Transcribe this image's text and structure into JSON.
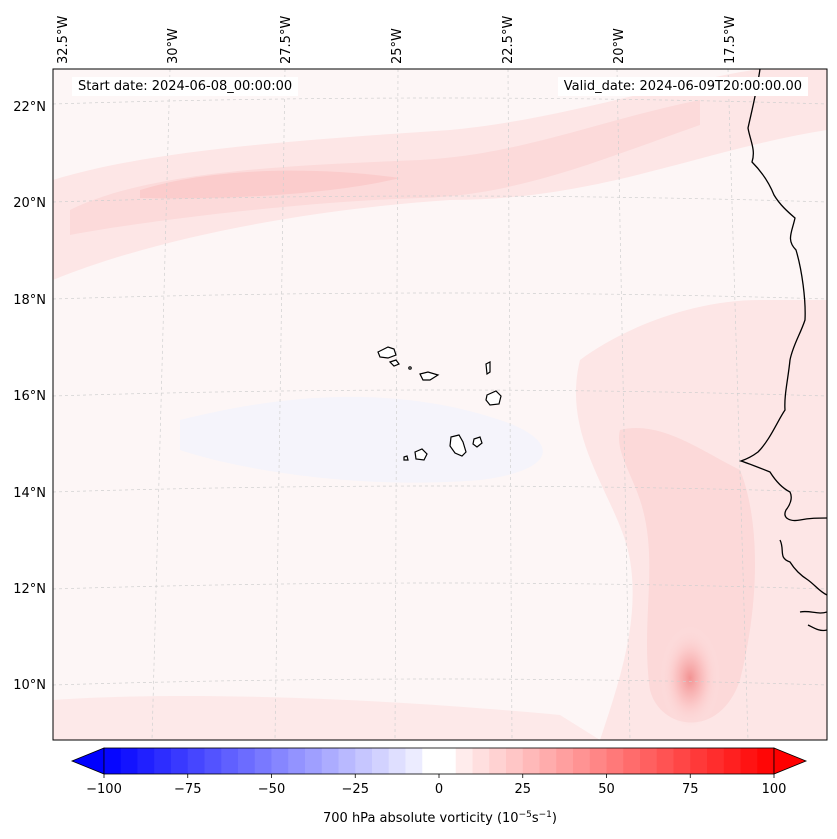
{
  "header": {
    "start_date": "Start date: 2024-06-08_00:00:00",
    "valid_date": "Valid_date: 2024-06-09T20:00:00.00"
  },
  "map": {
    "lon_labels": [
      "32.5°W",
      "30°W",
      "27.5°W",
      "25°W",
      "22.5°W",
      "20°W",
      "17.5°W"
    ],
    "lat_labels": [
      "22°N",
      "20°N",
      "18°N",
      "16°N",
      "14°N",
      "12°N",
      "10°N"
    ]
  },
  "colorbar": {
    "ticks": [
      "−100",
      "−75",
      "−50",
      "−25",
      "0",
      "25",
      "50",
      "75",
      "100"
    ],
    "label": "700 hPa absolute vorticity (10",
    "label_unit_exp1": "−5",
    "label_unit_mid": "s",
    "label_unit_exp2": "−1",
    "label_close": ")",
    "min": -100,
    "max": 100,
    "negative_color": "#0000ff",
    "zero_color": "#ffffff",
    "positive_color": "#ff0000"
  }
}
